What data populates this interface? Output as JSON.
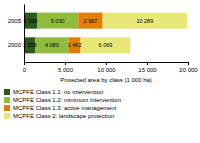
{
  "chart_data": {
    "type": "bar",
    "orientation": "horizontal",
    "stacked": true,
    "data_labels": true,
    "grid": false,
    "legend": "bottom",
    "categories": [
      "2005",
      "2000"
    ],
    "series": [
      {
        "name": "MCPFE Class 1.1: no intervention",
        "color": "#2d5a1b",
        "values": [
          1590,
          1358
        ],
        "value_labels": [
          "1 590",
          "1 358"
        ]
      },
      {
        "name": "MCPFE Class 1.2: minimum intervention",
        "color": "#8fbc3e",
        "values": [
          5030,
          4080
        ],
        "value_labels": [
          "5 030",
          "4 080"
        ]
      },
      {
        "name": "MCPFE Class 1.3: active management",
        "color": "#e07f00",
        "values": [
          2967,
          1462
        ],
        "value_labels": [
          "2 967",
          "1 462"
        ]
      },
      {
        "name": "MCPFE Class 2: landscape protection",
        "color": "#e8e87a",
        "values": [
          10289,
          6069
        ],
        "value_labels": [
          "10 289",
          "6 069"
        ]
      }
    ],
    "xlabel": "Protected area by class (1 000 ha)",
    "xlim": [
      0,
      20000
    ],
    "xticks": [
      0,
      {
        "value": 5000,
        "label": "5 000"
      },
      {
        "value": 10000,
        "label": "10 000"
      },
      {
        "value": 15000,
        "label": "15 000"
      },
      {
        "value": 20000,
        "label": "20 000"
      }
    ]
  }
}
